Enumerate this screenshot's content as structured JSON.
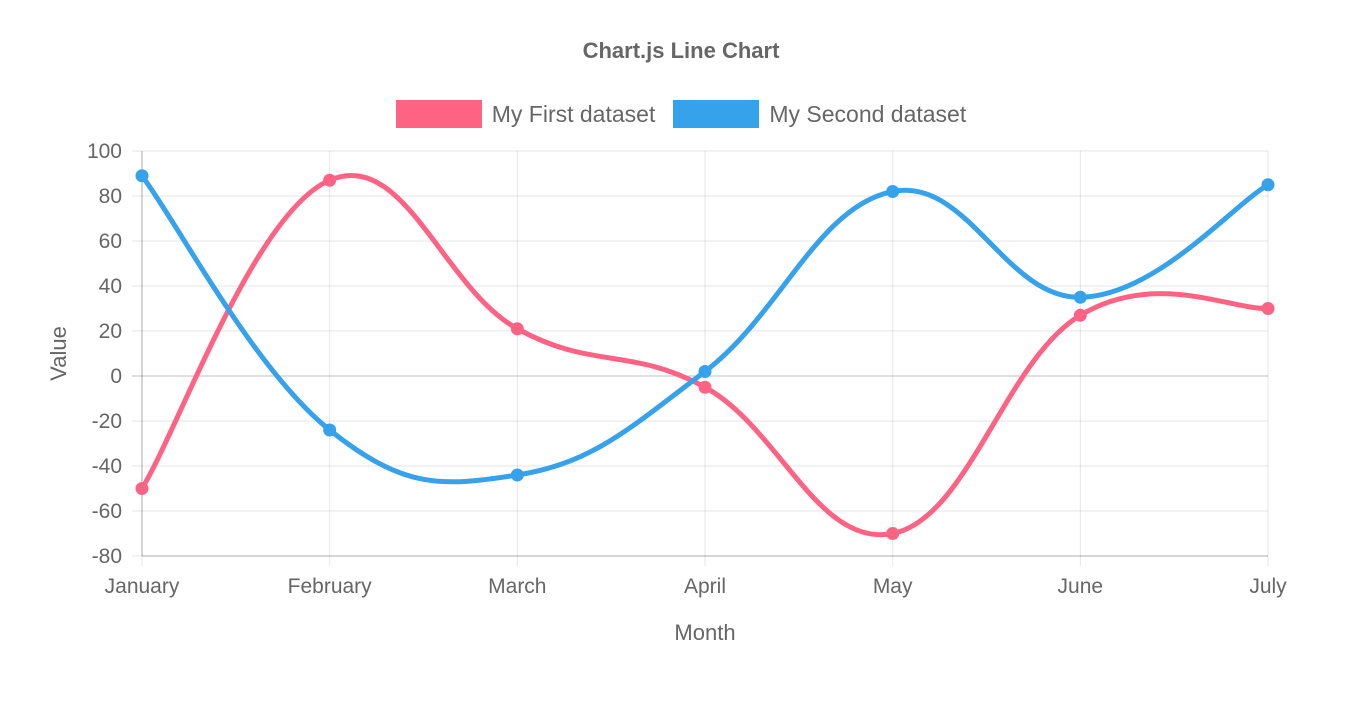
{
  "chart_data": {
    "type": "line",
    "title": "Chart.js Line Chart",
    "xlabel": "Month",
    "ylabel": "Value",
    "categories": [
      "January",
      "February",
      "March",
      "April",
      "May",
      "June",
      "July"
    ],
    "ylim": [
      -80,
      100
    ],
    "ytick_step": 20,
    "grid": true,
    "legend_position": "top",
    "series": [
      {
        "name": "My First dataset",
        "color": "#ff6384",
        "values": [
          -50,
          87,
          21,
          -5,
          -70,
          27,
          30
        ]
      },
      {
        "name": "My Second dataset",
        "color": "#36a2eb",
        "values": [
          89,
          -24,
          -44,
          2,
          82,
          35,
          85
        ]
      }
    ]
  }
}
